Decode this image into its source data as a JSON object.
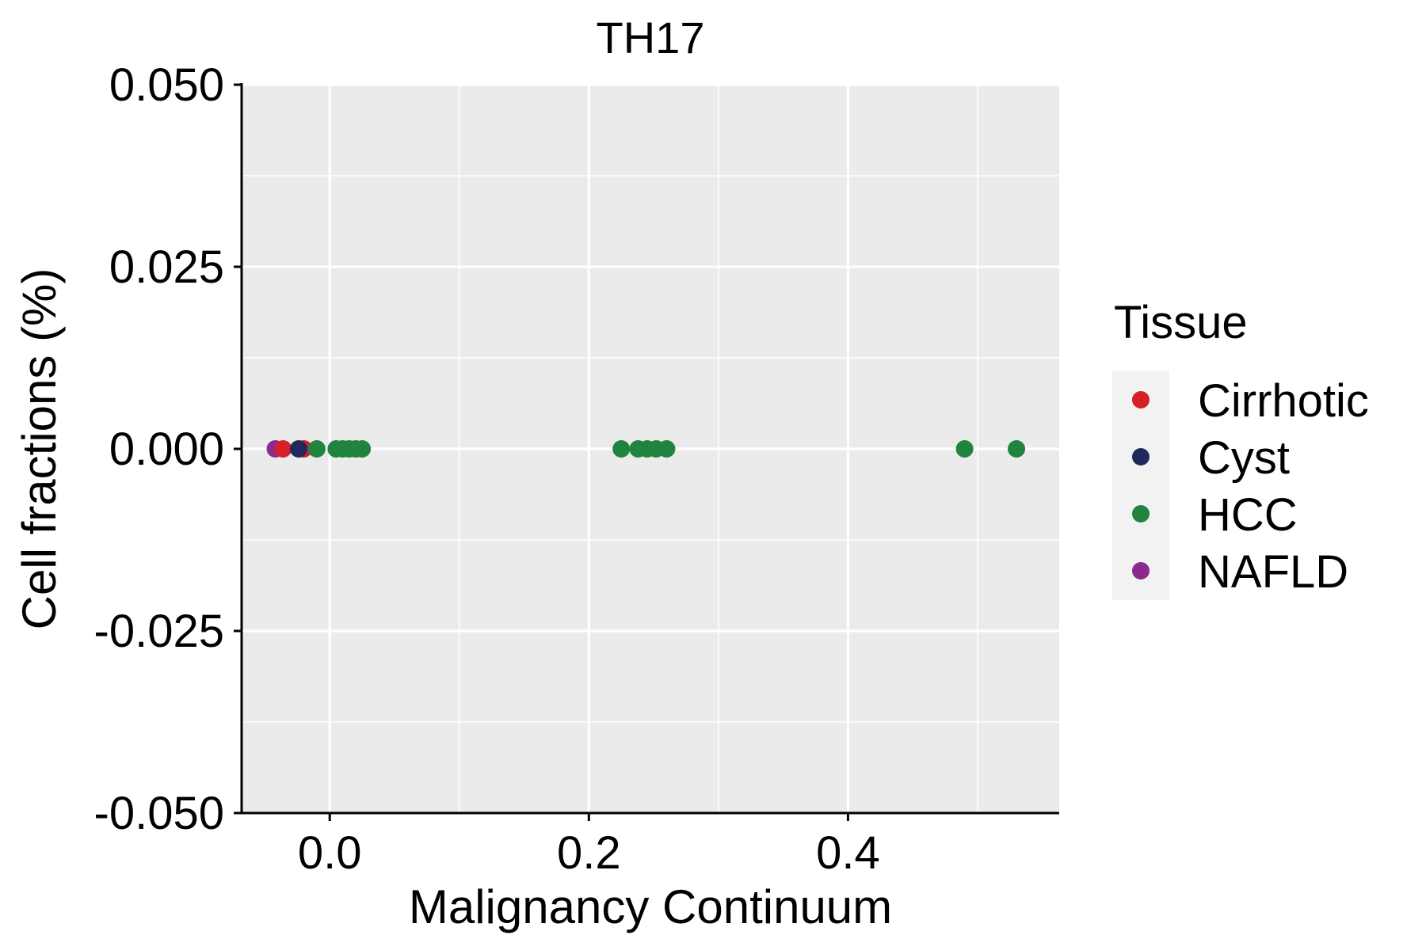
{
  "chart_data": {
    "type": "scatter",
    "title": "TH17",
    "xlabel": "Malignancy Continuum",
    "ylabel": "Cell fractions (%)",
    "xlim": [
      -0.068,
      0.563
    ],
    "ylim": [
      -0.05,
      0.05
    ],
    "x_ticks": [
      0.0,
      0.2,
      0.4
    ],
    "x_tick_labels": [
      "0.0",
      "0.2",
      "0.4"
    ],
    "y_ticks": [
      -0.05,
      -0.025,
      0.0,
      0.025,
      0.05
    ],
    "y_tick_labels": [
      "-0.050",
      "-0.025",
      "0.000",
      "0.025",
      "0.050"
    ],
    "grid": true,
    "legend": {
      "title": "Tissue",
      "placement": "right",
      "entries": [
        "Cirrhotic",
        "Cyst",
        "HCC",
        "NAFLD"
      ]
    },
    "colors": {
      "Cirrhotic": "#d62027",
      "Cyst": "#21295c",
      "HCC": "#20843f",
      "NAFLD": "#8a2a8f",
      "panel": "#ebebeb",
      "grid": "#ffffff"
    },
    "series": [
      {
        "name": "NAFLD",
        "x": [
          -0.042
        ],
        "y": [
          0.0
        ]
      },
      {
        "name": "Cirrhotic",
        "x": [
          -0.036,
          -0.02
        ],
        "y": [
          0.0,
          0.0
        ]
      },
      {
        "name": "Cyst",
        "x": [
          -0.024
        ],
        "y": [
          0.0
        ]
      },
      {
        "name": "HCC",
        "x": [
          -0.01,
          0.005,
          0.01,
          0.015,
          0.02,
          0.025,
          0.225,
          0.238,
          0.245,
          0.252,
          0.26,
          0.49,
          0.53
        ],
        "y": [
          0,
          0,
          0,
          0,
          0,
          0,
          0,
          0,
          0,
          0,
          0,
          0,
          0
        ]
      }
    ]
  }
}
